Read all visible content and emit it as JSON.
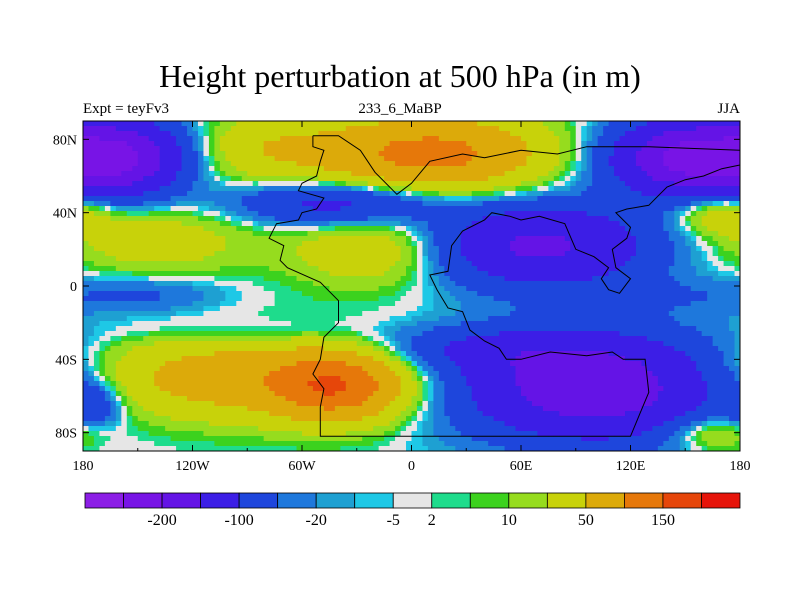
{
  "chart_data": {
    "type": "heatmap",
    "title": "Height perturbation at 500 hPa (in m)",
    "left_label": "Expt = teyFv3",
    "center_label": "233_6_MaBP",
    "right_label": "JJA",
    "x_range": [
      -180,
      180
    ],
    "y_range": [
      -90,
      90
    ],
    "x_ticks": [
      {
        "value": -180,
        "label": "180"
      },
      {
        "value": -120,
        "label": "120W"
      },
      {
        "value": -60,
        "label": "60W"
      },
      {
        "value": 0,
        "label": "0"
      },
      {
        "value": 60,
        "label": "60E"
      },
      {
        "value": 120,
        "label": "120E"
      },
      {
        "value": 180,
        "label": "180"
      }
    ],
    "y_ticks": [
      {
        "value": 80,
        "label": "80N"
      },
      {
        "value": 40,
        "label": "40N"
      },
      {
        "value": 0,
        "label": "0"
      },
      {
        "value": -40,
        "label": "40S"
      },
      {
        "value": -80,
        "label": "80S"
      }
    ],
    "colorbar": {
      "colors": [
        "#8c1ee6",
        "#7814e6",
        "#6414e6",
        "#3c1ee6",
        "#1e46dc",
        "#1e78dc",
        "#1ea0d2",
        "#1ec8e6",
        "#e6e6e6",
        "#1edc8c",
        "#3cd21e",
        "#96dc1e",
        "#c8d20a",
        "#dcaa0a",
        "#e6780a",
        "#e6460a",
        "#e6140a"
      ],
      "labels": [
        {
          "after_index": 1,
          "text": "-200"
        },
        {
          "after_index": 3,
          "text": "-100"
        },
        {
          "after_index": 5,
          "text": "-20"
        },
        {
          "after_index": 7,
          "text": "-5"
        },
        {
          "after_index": 8,
          "text": "2"
        },
        {
          "after_index": 10,
          "text": "10"
        },
        {
          "after_index": 12,
          "text": "50"
        },
        {
          "after_index": 14,
          "text": "150"
        }
      ]
    },
    "field_blobs": [
      {
        "lon": -160,
        "lat": 70,
        "rx": 35,
        "ry": 20,
        "amp": -150
      },
      {
        "lon": 150,
        "lat": 70,
        "rx": 40,
        "ry": 20,
        "amp": -160
      },
      {
        "lon": 10,
        "lat": 72,
        "rx": 60,
        "ry": 20,
        "amp": 120
      },
      {
        "lon": -80,
        "lat": 75,
        "rx": 40,
        "ry": 18,
        "amp": 40
      },
      {
        "lon": -40,
        "lat": 45,
        "rx": 55,
        "ry": 12,
        "amp": -70
      },
      {
        "lon": 70,
        "lat": 22,
        "rx": 60,
        "ry": 22,
        "amp": -110
      },
      {
        "lon": 170,
        "lat": 40,
        "rx": 25,
        "ry": 12,
        "amp": 45
      },
      {
        "lon": -140,
        "lat": 25,
        "rx": 50,
        "ry": 18,
        "amp": 35
      },
      {
        "lon": -20,
        "lat": 20,
        "rx": 45,
        "ry": 20,
        "amp": 45
      },
      {
        "lon": -150,
        "lat": -5,
        "rx": 45,
        "ry": 10,
        "amp": -25
      },
      {
        "lon": 130,
        "lat": -5,
        "rx": 40,
        "ry": 10,
        "amp": -15
      },
      {
        "lon": -90,
        "lat": -25,
        "rx": 70,
        "ry": 8,
        "amp": -15
      },
      {
        "lon": -100,
        "lat": -50,
        "rx": 80,
        "ry": 22,
        "amp": 75
      },
      {
        "lon": -40,
        "lat": -55,
        "rx": 35,
        "ry": 18,
        "amp": 120
      },
      {
        "lon": 100,
        "lat": -55,
        "rx": 70,
        "ry": 28,
        "amp": -140
      },
      {
        "lon": 40,
        "lat": -35,
        "rx": 60,
        "ry": 12,
        "amp": -40
      },
      {
        "lon": 165,
        "lat": -80,
        "rx": 25,
        "ry": 10,
        "amp": 40
      },
      {
        "lon": -175,
        "lat": -65,
        "rx": 15,
        "ry": 12,
        "amp": -40
      }
    ],
    "coastline": [
      [
        -54,
        82
      ],
      [
        -54,
        76
      ],
      [
        -48,
        74
      ],
      [
        -50,
        68
      ],
      [
        -52,
        60
      ],
      [
        -60,
        56
      ],
      [
        -62,
        52
      ],
      [
        -48,
        48
      ],
      [
        -52,
        42
      ],
      [
        -60,
        40
      ],
      [
        -62,
        36
      ],
      [
        -74,
        34
      ],
      [
        -78,
        26
      ],
      [
        -70,
        22
      ],
      [
        -72,
        14
      ],
      [
        -68,
        10
      ],
      [
        -50,
        2
      ],
      [
        -46,
        -2
      ],
      [
        -40,
        -8
      ],
      [
        -40,
        -20
      ],
      [
        -48,
        -28
      ],
      [
        -50,
        -40
      ],
      [
        -54,
        -48
      ],
      [
        -48,
        -56
      ],
      [
        -50,
        -66
      ],
      [
        -50,
        -82
      ],
      [
        0,
        -82
      ],
      [
        55,
        -82
      ],
      [
        120,
        -82
      ],
      [
        125,
        -70
      ],
      [
        130,
        -58
      ],
      [
        128,
        -40
      ],
      [
        116,
        -40
      ],
      [
        110,
        -36
      ],
      [
        96,
        -38
      ],
      [
        76,
        -36
      ],
      [
        60,
        -40
      ],
      [
        52,
        -40
      ],
      [
        48,
        -34
      ],
      [
        40,
        -30
      ],
      [
        32,
        -24
      ],
      [
        28,
        -14
      ],
      [
        20,
        -12
      ],
      [
        14,
        -2
      ],
      [
        10,
        6
      ],
      [
        20,
        8
      ],
      [
        22,
        22
      ],
      [
        28,
        30
      ],
      [
        40,
        36
      ],
      [
        44,
        40
      ],
      [
        54,
        38
      ],
      [
        60,
        36
      ],
      [
        70,
        38
      ],
      [
        84,
        34
      ],
      [
        90,
        20
      ],
      [
        100,
        16
      ],
      [
        108,
        10
      ],
      [
        104,
        4
      ],
      [
        108,
        -2
      ],
      [
        114,
        -4
      ],
      [
        120,
        4
      ],
      [
        112,
        10
      ],
      [
        110,
        20
      ],
      [
        118,
        26
      ],
      [
        120,
        32
      ],
      [
        112,
        40
      ],
      [
        118,
        42
      ],
      [
        130,
        44
      ],
      [
        136,
        50
      ],
      [
        140,
        54
      ],
      [
        150,
        58
      ],
      [
        160,
        60
      ],
      [
        170,
        64
      ],
      [
        180,
        66
      ],
      [
        180,
        74
      ],
      [
        130,
        76
      ],
      [
        96,
        76
      ],
      [
        80,
        72
      ],
      [
        60,
        74
      ],
      [
        40,
        70
      ],
      [
        28,
        72
      ],
      [
        10,
        68
      ],
      [
        0,
        56
      ],
      [
        -8,
        50
      ],
      [
        -20,
        62
      ],
      [
        -28,
        74
      ],
      [
        -40,
        82
      ],
      [
        -54,
        82
      ]
    ]
  }
}
